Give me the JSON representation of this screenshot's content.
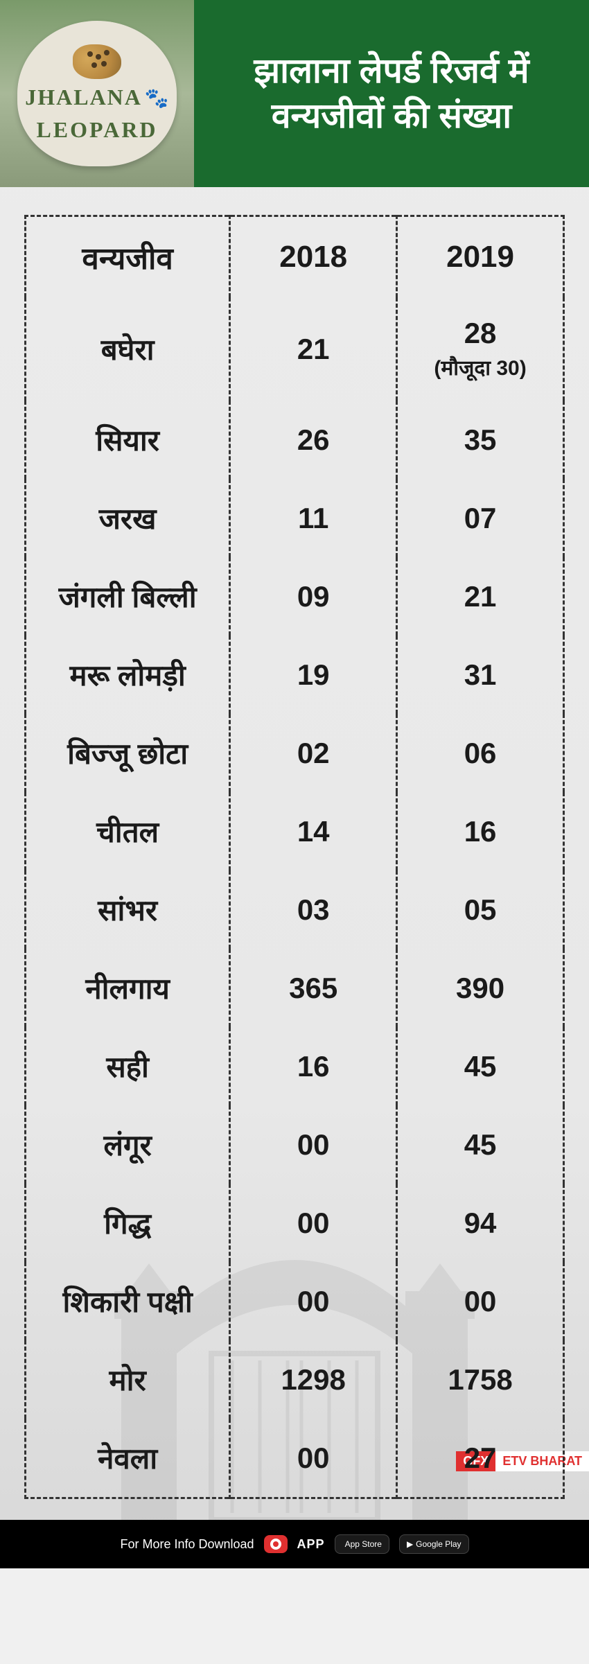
{
  "header": {
    "sign_line1": "JHALANA",
    "sign_line2": "LEOPARD",
    "title_line1": "झालाना लेपर्ड रिजर्व में",
    "title_line2": "वन्यजीवों की संख्या",
    "header_bg_color": "#1a6b2e",
    "title_color": "#ffffff",
    "title_fontsize": 50
  },
  "table": {
    "border_style": "dashed",
    "border_color": "#333333",
    "text_color": "#1a1a1a",
    "cell_fontsize": 42,
    "header_fontsize": 44,
    "columns": [
      "वन्यजीव",
      "2018",
      "2019"
    ],
    "rows": [
      {
        "name": "बघेरा",
        "y2018": "21",
        "y2019": "28",
        "note2019": "(मौजूदा 30)"
      },
      {
        "name": "सियार",
        "y2018": "26",
        "y2019": "35"
      },
      {
        "name": "जरख",
        "y2018": "11",
        "y2019": "07"
      },
      {
        "name": "जंगली बिल्ली",
        "y2018": "09",
        "y2019": "21"
      },
      {
        "name": "मरू लोमड़ी",
        "y2018": "19",
        "y2019": "31"
      },
      {
        "name": "बिज्जू छोटा",
        "y2018": "02",
        "y2019": "06"
      },
      {
        "name": "चीतल",
        "y2018": "14",
        "y2019": "16"
      },
      {
        "name": "सांभर",
        "y2018": "03",
        "y2019": "05"
      },
      {
        "name": "नीलगाय",
        "y2018": "365",
        "y2019": "390"
      },
      {
        "name": "सही",
        "y2018": "16",
        "y2019": "45"
      },
      {
        "name": "लंगूर",
        "y2018": "00",
        "y2019": "45"
      },
      {
        "name": "गिद्ध",
        "y2018": "00",
        "y2019": "94"
      },
      {
        "name": "शिकारी पक्षी",
        "y2018": "00",
        "y2019": "00"
      },
      {
        "name": "मोर",
        "y2018": "1298",
        "y2019": "1758"
      },
      {
        "name": "नेवला",
        "y2018": "00",
        "y2019": "27"
      }
    ]
  },
  "footer": {
    "text": "For More Info Download",
    "app_label": "APP",
    "appstore_label": "App Store",
    "playstore_label": "Google Play",
    "gfx_label": "GFX",
    "brand_label": "ETV BHARAT",
    "bg_color": "#000000",
    "text_color": "#ffffff"
  },
  "colors": {
    "page_bg": "#ececec",
    "accent_red": "#e03030",
    "sign_text": "#4a6838"
  }
}
